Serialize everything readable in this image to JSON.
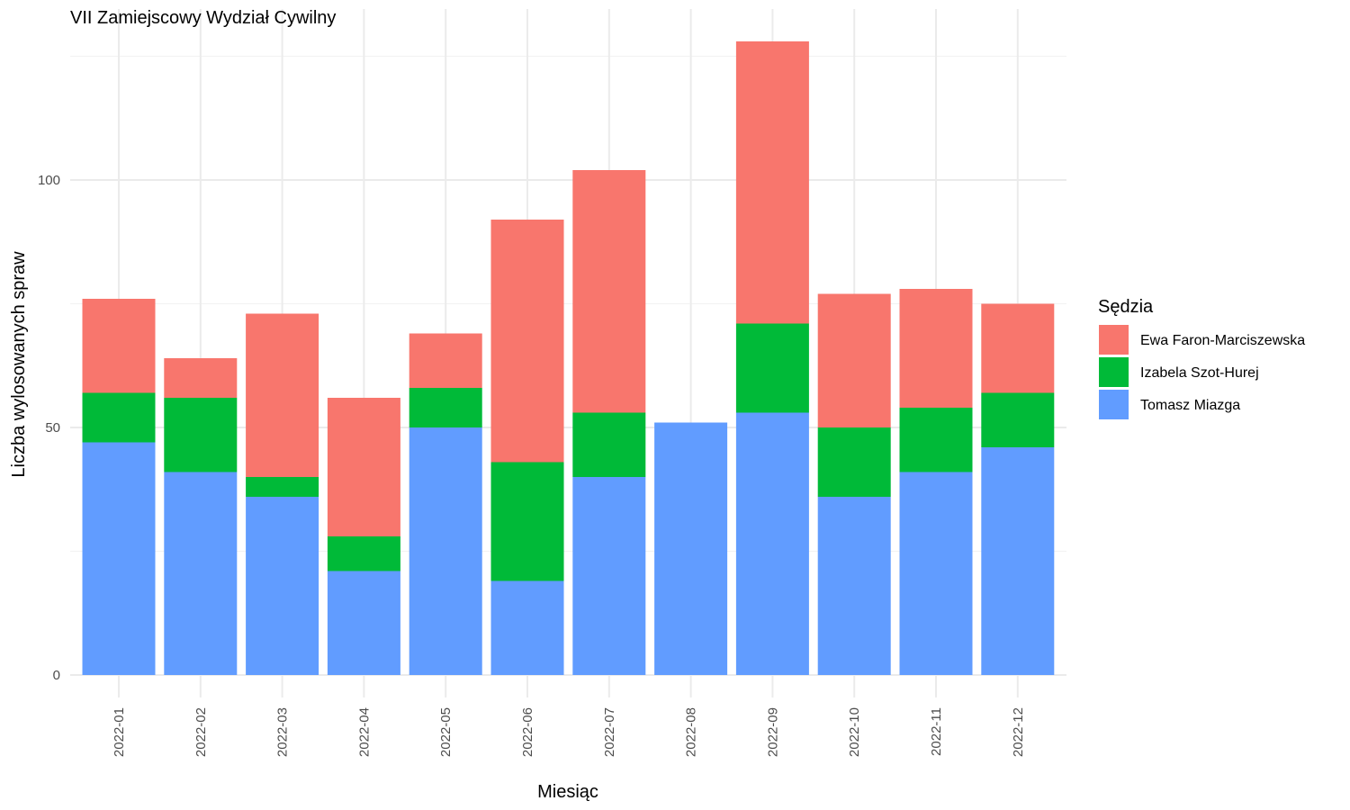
{
  "chart_data": {
    "type": "bar",
    "stacked": true,
    "title": "VII Zamiejscowy Wydział Cywilny",
    "xlabel": "Miesiąc",
    "ylabel": "Liczba wylosowanych spraw",
    "categories": [
      "2022-01",
      "2022-02",
      "2022-03",
      "2022-04",
      "2022-05",
      "2022-06",
      "2022-07",
      "2022-08",
      "2022-09",
      "2022-10",
      "2022-11",
      "2022-12"
    ],
    "ylim": [
      0,
      136
    ],
    "yticks": [
      0,
      50,
      100
    ],
    "grid": true,
    "legend": {
      "title": "Sędzia",
      "position": "right",
      "entries": [
        "Ewa Faron-Marciszewska",
        "Izabela Szot-Hurej",
        "Tomasz Miazga"
      ]
    },
    "stack_order_bottom_to_top": [
      "Tomasz Miazga",
      "Izabela Szot-Hurej",
      "Ewa Faron-Marciszewska"
    ],
    "series": [
      {
        "name": "Ewa Faron-Marciszewska",
        "color": "#F8766D",
        "values": [
          19,
          8,
          33,
          28,
          11,
          49,
          49,
          0,
          57,
          27,
          24,
          18
        ]
      },
      {
        "name": "Izabela Szot-Hurej",
        "color": "#00BA38",
        "values": [
          10,
          15,
          4,
          7,
          8,
          24,
          13,
          0,
          18,
          14,
          13,
          11
        ]
      },
      {
        "name": "Tomasz Miazga",
        "color": "#619CFF",
        "values": [
          47,
          41,
          36,
          21,
          50,
          19,
          40,
          51,
          53,
          36,
          41,
          46
        ]
      }
    ]
  }
}
